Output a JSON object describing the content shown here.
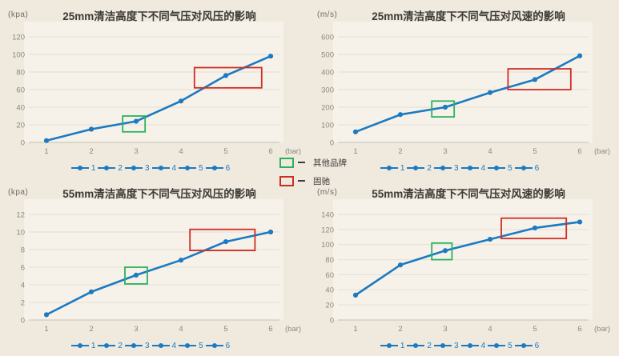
{
  "page": {
    "background": "#efe9de"
  },
  "colors": {
    "line": "#1b7ac1",
    "green_box": "#2bb25e",
    "red_box": "#cf2d24",
    "grid": "#e4dfd3",
    "axis": "#c7c1b4",
    "plot_bg": "#f6f2ea",
    "tick_text": "#8d897d",
    "title_text": "#3b3a35"
  },
  "legend": {
    "items": [
      {
        "label": "其他品牌",
        "box_color": "#2bb25e"
      },
      {
        "label": "固驰",
        "box_color": "#cf2d24"
      }
    ]
  },
  "series_legend_labels": [
    "1",
    "2",
    "3",
    "4",
    "5",
    "6"
  ],
  "chart_data": [
    {
      "type": "line",
      "title": "25mm清洁高度下不同气压对风压的影响",
      "y_unit": "(kpa)",
      "x_unit": "(bar)",
      "x": [
        1,
        2,
        3,
        4,
        5,
        6
      ],
      "values": [
        2,
        15,
        24,
        47,
        76,
        98
      ],
      "ylim": [
        0,
        120
      ],
      "ystep": 20,
      "grid": true,
      "highlight_green": {
        "x1": 2.7,
        "x2": 3.2,
        "y1": 12,
        "y2": 30
      },
      "highlight_red": {
        "x1": 4.3,
        "x2": 5.8,
        "y1": 62,
        "y2": 85
      }
    },
    {
      "type": "line",
      "title": "25mm清洁高度下不同气压对风速的影响",
      "y_unit": "(m/s)",
      "x_unit": "(bar)",
      "x": [
        1,
        2,
        3,
        4,
        5,
        6
      ],
      "values": [
        60,
        158,
        200,
        283,
        357,
        492
      ],
      "ylim": [
        0,
        600
      ],
      "ystep": 100,
      "grid": true,
      "highlight_green": {
        "x1": 2.7,
        "x2": 3.2,
        "y1": 145,
        "y2": 235
      },
      "highlight_red": {
        "x1": 4.4,
        "x2": 5.8,
        "y1": 300,
        "y2": 418
      }
    },
    {
      "type": "line",
      "title": "55mm清洁高度下不同气压对风压的影响",
      "y_unit": "(kpa)",
      "x_unit": "(bar)",
      "x": [
        1,
        2,
        3,
        4,
        5,
        6
      ],
      "values": [
        0.6,
        3.2,
        5.1,
        6.8,
        8.9,
        10
      ],
      "ylim": [
        0,
        12
      ],
      "ystep": 2,
      "grid": true,
      "highlight_green": {
        "x1": 2.75,
        "x2": 3.25,
        "y1": 4.1,
        "y2": 6.0
      },
      "highlight_red": {
        "x1": 4.2,
        "x2": 5.65,
        "y1": 7.9,
        "y2": 10.3
      }
    },
    {
      "type": "line",
      "title": "55mm清洁高度下不同气压对风速的影响",
      "y_unit": "(m/s)",
      "x_unit": "(bar)",
      "x": [
        1,
        2,
        3,
        4,
        5,
        6
      ],
      "values": [
        33,
        73,
        92,
        107,
        122,
        130
      ],
      "ylim": [
        0,
        140
      ],
      "ystep": 20,
      "grid": true,
      "highlight_green": {
        "x1": 2.7,
        "x2": 3.15,
        "y1": 80,
        "y2": 102
      },
      "highlight_red": {
        "x1": 4.25,
        "x2": 5.7,
        "y1": 108,
        "y2": 135
      }
    }
  ]
}
